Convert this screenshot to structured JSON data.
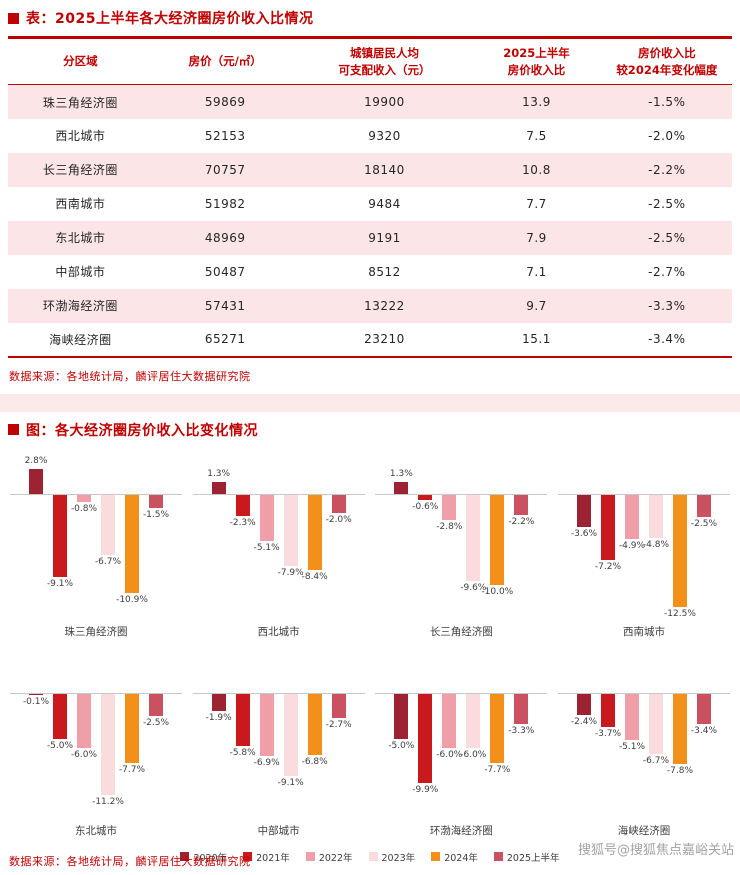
{
  "page": {
    "table_section": {
      "title": "表：2025上半年各大经济圈房价收入比情况",
      "table": {
        "headers": [
          "分区域",
          "房价（元/㎡）",
          "城镇居民人均\n可支配收入（元）",
          "2025上半年\n房价收入比",
          "房价收入比\n较2024年变化幅度"
        ]
      },
      "source": "数据来源：各地统计局，麟评居住大数据研究院"
    },
    "chart_section": {
      "title": "图：各大经济圈房价收入比变化情况",
      "source": "数据来源：各地统计局，麟评居住大数据研究院"
    },
    "watermark": "搜狐号@搜狐焦点嘉峪关站",
    "colors": {
      "accent_red": "#C00000",
      "row_pink": "#FBE5E6",
      "divider_pink": "#FBEAEA"
    }
  },
  "chart_data": [
    {
      "type": "table",
      "title": "2025上半年各大经济圈房价收入比情况",
      "columns": [
        "分区域",
        "房价（元/㎡）",
        "城镇居民人均可支配收入（元）",
        "2025上半年房价收入比",
        "房价收入比较2024年变化幅度"
      ],
      "rows": [
        [
          "珠三角经济圈",
          "59869",
          "19900",
          "13.9",
          "-1.5%"
        ],
        [
          "西北城市",
          "52153",
          "9320",
          "7.5",
          "-2.0%"
        ],
        [
          "长三角经济圈",
          "70757",
          "18140",
          "10.8",
          "-2.2%"
        ],
        [
          "西南城市",
          "51982",
          "9484",
          "7.7",
          "-2.5%"
        ],
        [
          "东北城市",
          "48969",
          "9191",
          "7.9",
          "-2.5%"
        ],
        [
          "中部城市",
          "50487",
          "8512",
          "7.1",
          "-2.7%"
        ],
        [
          "环渤海经济圈",
          "57431",
          "13222",
          "9.7",
          "-3.3%"
        ],
        [
          "海峡经济圈",
          "65271",
          "23210",
          "15.1",
          "-3.4%"
        ]
      ]
    },
    {
      "type": "bar",
      "title": "各大经济圈房价收入比变化情况",
      "unit": "%",
      "categories": [
        "珠三角经济圈",
        "西北城市",
        "长三角经济圈",
        "西南城市",
        "东北城市",
        "中部城市",
        "环渤海经济圈",
        "海峡经济圈"
      ],
      "series": [
        {
          "name": "2020年",
          "color": "#9E2332",
          "values": [
            2.8,
            1.3,
            1.3,
            -3.6,
            -0.1,
            -1.9,
            -5.0,
            -2.4
          ]
        },
        {
          "name": "2021年",
          "color": "#C9191D",
          "values": [
            -9.1,
            -2.3,
            -0.6,
            -7.2,
            -5.0,
            -5.8,
            -9.9,
            -3.7
          ]
        },
        {
          "name": "2022年",
          "color": "#F09FA8",
          "values": [
            -0.8,
            -5.1,
            -2.8,
            -4.9,
            -6.0,
            -6.9,
            -6.0,
            -5.1
          ]
        },
        {
          "name": "2023年",
          "color": "#FADCDF",
          "values": [
            -6.7,
            -7.9,
            -9.6,
            -4.8,
            -11.2,
            -9.1,
            -6.0,
            -6.7
          ]
        },
        {
          "name": "2024年",
          "color": "#F39019",
          "values": [
            -10.9,
            -8.4,
            -10.0,
            -12.5,
            -7.7,
            -6.8,
            -7.7,
            -7.8
          ]
        },
        {
          "name": "2025上半年",
          "color": "#CA5260",
          "values": [
            -1.5,
            -2.0,
            -2.2,
            -2.5,
            -2.5,
            -2.7,
            -3.3,
            -3.4
          ]
        }
      ],
      "ylim": [
        -13,
        3.5
      ],
      "rows_layout": [
        4,
        4
      ],
      "legend_position": "bottom"
    }
  ]
}
